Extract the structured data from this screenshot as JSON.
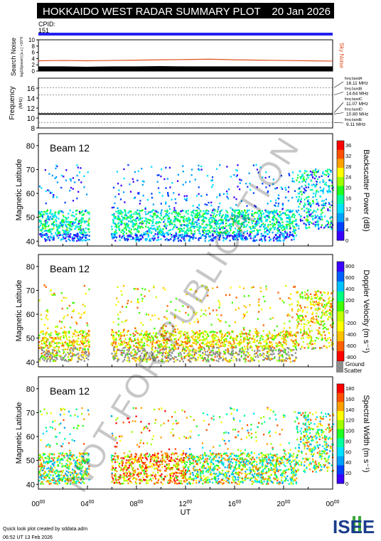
{
  "header": {
    "title": "HOKKAIDO WEST RADAR SUMMARY PLOT",
    "date": "20 Jan 2026",
    "cpid_label": "CPID:",
    "cpid_value": "151"
  },
  "footer": {
    "credit": "Quick look plot created by sddata.adm",
    "timestamp": "06:52 UT 13 Feb 2026",
    "logo_text": "ISEE"
  },
  "watermark": "NOT FOR PUBLICATION",
  "colors": {
    "cpid_bar": "#2222ee",
    "noise_line": "#e05020",
    "frequency_line": "#000000",
    "ground_scatter": "#8c8c8c",
    "logo_blue": "#1a3c8c",
    "logo_green": "#3aa836"
  },
  "chart_data": [
    {
      "type": "area",
      "id": "search-noise",
      "ylabel": "Search Noise",
      "yunit": "log10(power) [a.u.] ×10^0",
      "ylim": [
        0,
        10
      ],
      "yticks": [
        "0",
        "2",
        "4",
        "6",
        "8",
        "10"
      ],
      "side_label": "Sky Noise",
      "x_hours": [
        0,
        2,
        4,
        6,
        8,
        10,
        12,
        14,
        16,
        18,
        20,
        22,
        24
      ],
      "sky_noise": [
        3.3,
        3.4,
        3.3,
        3.4,
        3.5,
        3.6,
        3.7,
        3.8,
        3.6,
        3.5,
        3.4,
        3.3,
        3.2
      ],
      "search_noise": [
        1.5,
        1.5,
        1.4,
        1.5,
        1.5,
        1.6,
        1.5,
        1.5,
        1.5,
        1.5,
        1.5,
        1.5,
        1.5
      ]
    },
    {
      "type": "line",
      "id": "frequency",
      "ylabel": "Frequency",
      "yunit": "(MHz)",
      "ylim": [
        8,
        18
      ],
      "yticks": [
        "8",
        "10",
        "12",
        "14",
        "16"
      ],
      "bands": [
        {
          "name": "freq bandA",
          "value": "16.11 MHz"
        },
        {
          "name": "freq bandB",
          "value": "14.64 MHz"
        },
        {
          "name": "freq bandC",
          "value": "11.07 MHz"
        },
        {
          "name": "freq bandD",
          "value": "10.80 MHz"
        },
        {
          "name": "freq bandE",
          "value": "9.11 MHz"
        }
      ],
      "operating_frequency_mhz": 10.8
    },
    {
      "type": "heatmap",
      "id": "backscatter-power",
      "beam_label": "Beam 12",
      "ylabel": "Magnetic Latitude",
      "ylim": [
        38,
        85
      ],
      "yticks": [
        "40",
        "50",
        "60",
        "70",
        "80"
      ],
      "colorbar_label": "Backscatter Power (dB)",
      "colorbar_ticks": [
        "0",
        "4",
        "8",
        "12",
        "16",
        "20",
        "24",
        "28",
        "32",
        "36"
      ],
      "colorbar_colors": [
        "#3a00ff",
        "#0040ff",
        "#00a0ff",
        "#00e0ff",
        "#00ffa0",
        "#20ff20",
        "#a0ff00",
        "#ffff00",
        "#ffa000",
        "#ff5000",
        "#ff0000"
      ]
    },
    {
      "type": "heatmap",
      "id": "doppler-velocity",
      "beam_label": "Beam 12",
      "ylabel": "Magnetic Latitude",
      "ylim": [
        38,
        85
      ],
      "yticks": [
        "40",
        "50",
        "60",
        "70",
        "80"
      ],
      "colorbar_label": "Doppler Velocity (m s⁻¹)",
      "colorbar_ticks": [
        "800",
        "600",
        "400",
        "200",
        "0",
        "-200",
        "-400",
        "-600",
        "-800"
      ],
      "colorbar_colors": [
        "#3a00ff",
        "#0060ff",
        "#00c0ff",
        "#00ff80",
        "#40ff00",
        "#c0ff00",
        "#ffff00",
        "#ffc000",
        "#ff6000",
        "#ff0000"
      ],
      "ground_label_1": "Ground",
      "ground_label_2": "Scatter"
    },
    {
      "type": "heatmap",
      "id": "spectral-width",
      "beam_label": "Beam 12",
      "ylabel": "Magnetic Latitude",
      "ylim": [
        38,
        85
      ],
      "yticks": [
        "40",
        "50",
        "60",
        "70",
        "80"
      ],
      "colorbar_label": "Spectral Width (m s⁻¹)",
      "colorbar_ticks": [
        "0",
        "20",
        "40",
        "60",
        "80",
        "100",
        "120",
        "140",
        "160",
        "180"
      ],
      "colorbar_colors": [
        "#3a00ff",
        "#0040ff",
        "#00a0ff",
        "#00e0ff",
        "#00ffa0",
        "#20ff20",
        "#a0ff00",
        "#ffff00",
        "#ffa000",
        "#ff5000",
        "#ff0000"
      ]
    }
  ],
  "x_axis": {
    "xlabel": "UT",
    "ticks": [
      {
        "h": "00",
        "m": "00"
      },
      {
        "h": "04",
        "m": "00"
      },
      {
        "h": "08",
        "m": "00"
      },
      {
        "h": "12",
        "m": "00"
      },
      {
        "h": "16",
        "m": "00"
      },
      {
        "h": "20",
        "m": "00"
      },
      {
        "h": "00",
        "m": "00"
      }
    ]
  }
}
